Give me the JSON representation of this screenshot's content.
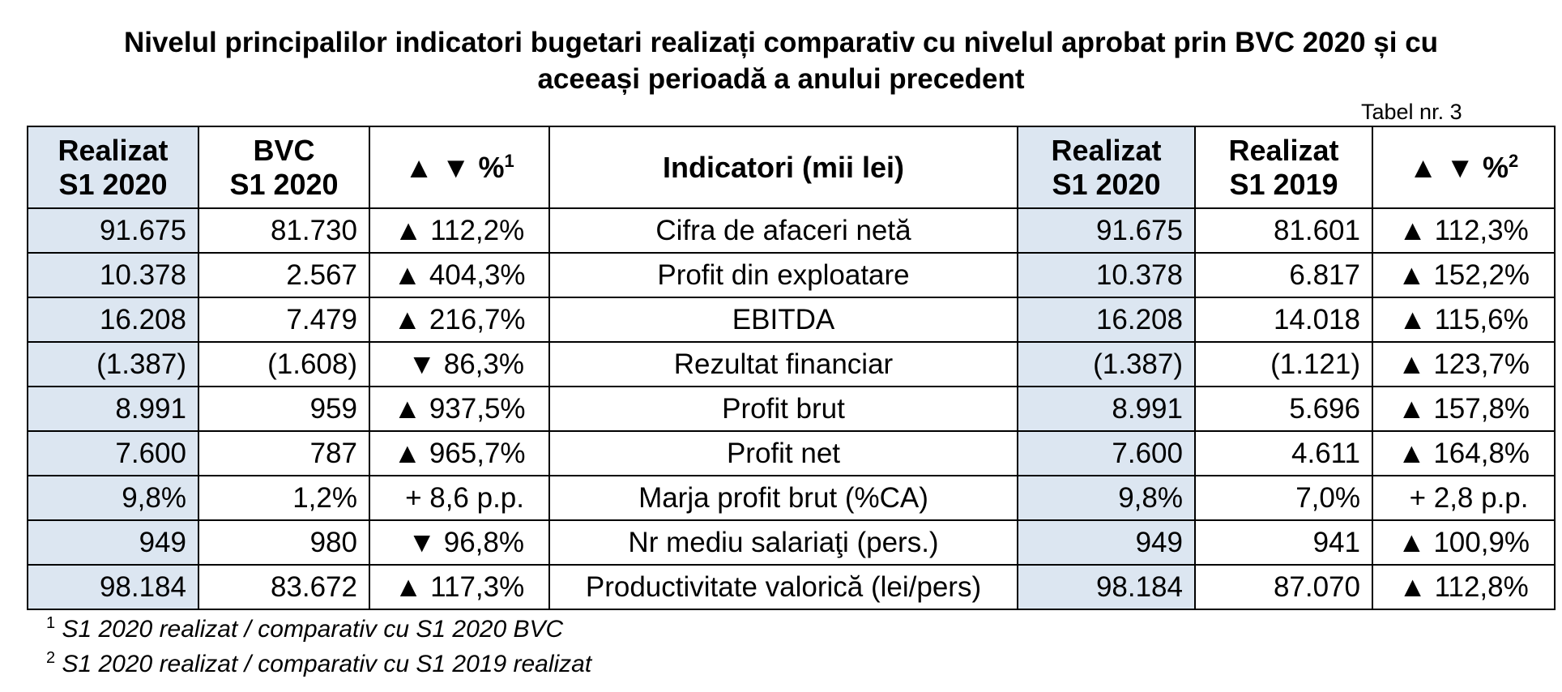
{
  "title": {
    "line1": "Nivelul principalilor indicatori bugetari realizați comparativ cu nivelul aprobat prin BVC 2020 și cu",
    "line2": "aceeași perioadă a anului precedent"
  },
  "table_number": "Tabel nr. 3",
  "headers": {
    "col1": {
      "line1": "Realizat",
      "line2": "S1 2020"
    },
    "col2": {
      "line1": "BVC",
      "line2": "S1 2020"
    },
    "col3": {
      "label": "▲ ▼ %",
      "sup": "1"
    },
    "col4": {
      "label": "Indicatori (mii lei)"
    },
    "col5": {
      "line1": "Realizat",
      "line2": "S1 2020"
    },
    "col6": {
      "line1": "Realizat",
      "line2": "S1 2019"
    },
    "col7": {
      "label": "▲ ▼ %",
      "sup": "2"
    }
  },
  "rows": [
    {
      "realizat_s1_2020": "91.675",
      "bvc_s1_2020": "81.730",
      "pct1": "▲ 112,2%",
      "indicator": "Cifra de afaceri netă",
      "realizat_s1_2020_b": "91.675",
      "realizat_s1_2019": "81.601",
      "pct2": "▲ 112,3%"
    },
    {
      "realizat_s1_2020": "10.378",
      "bvc_s1_2020": "2.567",
      "pct1": "▲ 404,3%",
      "indicator": "Profit din exploatare",
      "realizat_s1_2020_b": "10.378",
      "realizat_s1_2019": "6.817",
      "pct2": "▲ 152,2%"
    },
    {
      "realizat_s1_2020": "16.208",
      "bvc_s1_2020": "7.479",
      "pct1": "▲ 216,7%",
      "indicator": "EBITDA",
      "realizat_s1_2020_b": "16.208",
      "realizat_s1_2019": "14.018",
      "pct2": "▲ 115,6%"
    },
    {
      "realizat_s1_2020": "(1.387)",
      "bvc_s1_2020": "(1.608)",
      "pct1": "▼ 86,3%",
      "indicator": "Rezultat financiar",
      "realizat_s1_2020_b": "(1.387)",
      "realizat_s1_2019": "(1.121)",
      "pct2": "▲ 123,7%"
    },
    {
      "realizat_s1_2020": "8.991",
      "bvc_s1_2020": "959",
      "pct1": "▲ 937,5%",
      "indicator": "Profit brut",
      "realizat_s1_2020_b": "8.991",
      "realizat_s1_2019": "5.696",
      "pct2": "▲ 157,8%"
    },
    {
      "realizat_s1_2020": "7.600",
      "bvc_s1_2020": "787",
      "pct1": "▲ 965,7%",
      "indicator": "Profit net",
      "realizat_s1_2020_b": "7.600",
      "realizat_s1_2019": "4.611",
      "pct2": "▲ 164,8%"
    },
    {
      "realizat_s1_2020": "9,8%",
      "bvc_s1_2020": "1,2%",
      "pct1": "+ 8,6 p.p.",
      "indicator": "Marja profit brut (%CA)",
      "realizat_s1_2020_b": "9,8%",
      "realizat_s1_2019": "7,0%",
      "pct2": "+ 2,8 p.p."
    },
    {
      "realizat_s1_2020": "949",
      "bvc_s1_2020": "980",
      "pct1": "▼ 96,8%",
      "indicator": "Nr mediu salariaţi (pers.)",
      "realizat_s1_2020_b": "949",
      "realizat_s1_2019": "941",
      "pct2": "▲ 100,9%"
    },
    {
      "realizat_s1_2020": "98.184",
      "bvc_s1_2020": "83.672",
      "pct1": "▲ 117,3%",
      "indicator": "Productivitate valorică (lei/pers)",
      "realizat_s1_2020_b": "98.184",
      "realizat_s1_2019": "87.070",
      "pct2": "▲ 112,8%"
    }
  ],
  "footnotes": [
    {
      "mark": "1",
      "text": "S1 2020 realizat / comparativ cu S1 2020 BVC"
    },
    {
      "mark": "2",
      "text": "S1 2020 realizat / comparativ cu S1 2019 realizat"
    }
  ],
  "colors": {
    "shaded_column": "#dce6f1",
    "border": "#000000"
  }
}
